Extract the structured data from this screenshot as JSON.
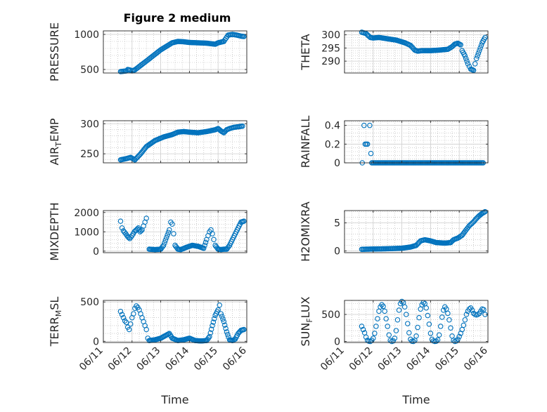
{
  "figure": {
    "title": "Figure 2 medium"
  },
  "colors": {
    "marker": "#0072BD",
    "axis": "#262626",
    "grid": "#b0b0b0",
    "background": "#ffffff"
  },
  "chart_data": [
    {
      "id": "pressure",
      "type": "scatter",
      "ylabel": "PRESSURE",
      "ylabel_sub": null,
      "ylim": [
        450,
        1050
      ],
      "yticks": [
        500,
        1000
      ],
      "ytick_labels": [
        "500",
        "1000"
      ],
      "xlim": [
        0,
        5
      ],
      "xticks": [
        0,
        1,
        2,
        3,
        4,
        5
      ],
      "xtick_labels": [
        "06/11",
        "06/12",
        "06/13",
        "06/14",
        "06/15",
        "06/16"
      ],
      "xlabel": "",
      "grid": true,
      "minor_grid": true,
      "title": "Figure 2 medium",
      "segments": [
        {
          "x": [
            0.6,
            0.8,
            0.85,
            0.95,
            1.0,
            1.1
          ],
          "y": [
            470,
            480,
            500,
            490,
            480,
            495
          ]
        },
        {
          "x": [
            1.1,
            1.5,
            2.0,
            2.4,
            2.6,
            2.8,
            3.0,
            3.3,
            3.6,
            3.9,
            4.0,
            4.2,
            4.35,
            4.5,
            4.65,
            4.8,
            4.9
          ],
          "y": [
            495,
            620,
            780,
            880,
            900,
            895,
            885,
            880,
            875,
            860,
            880,
            900,
            990,
            1000,
            990,
            975,
            970
          ]
        }
      ]
    },
    {
      "id": "theta",
      "type": "scatter",
      "ylabel": "THETA",
      "ylabel_sub": null,
      "ylim": [
        285.5,
        301.5
      ],
      "yticks": [
        290,
        295,
        300
      ],
      "ytick_labels": [
        "290",
        "295",
        "300"
      ],
      "xlim": [
        0,
        5
      ],
      "xticks": [
        0,
        1,
        2,
        3,
        4,
        5
      ],
      "xtick_labels": [
        "06/11",
        "06/12",
        "06/13",
        "06/14",
        "06/15",
        "06/16"
      ],
      "xlabel": "",
      "grid": true,
      "minor_grid": true,
      "title": "",
      "segments": [
        {
          "x": [
            0.6,
            0.75,
            0.9,
            1.0,
            1.2,
            1.5,
            1.8,
            2.1,
            2.3,
            2.45,
            2.55,
            2.7,
            3.0,
            3.3,
            3.6,
            3.75,
            3.85,
            3.95,
            4.05
          ],
          "y": [
            301,
            300.5,
            299,
            298.8,
            299,
            298.5,
            298,
            297,
            296,
            294.2,
            293.8,
            294,
            294,
            294.2,
            294.5,
            295.5,
            296.5,
            296.8,
            296.2
          ]
        },
        {
          "x": [
            4.1,
            4.2,
            4.3,
            4.35,
            4.4,
            4.5,
            4.55,
            4.6,
            4.7,
            4.8,
            4.9
          ],
          "y": [
            294,
            292,
            289,
            288,
            287,
            286.5,
            289,
            291,
            294,
            297,
            299
          ]
        }
      ]
    },
    {
      "id": "air_temp",
      "type": "scatter",
      "ylabel": "AIR",
      "ylabel_sub": "T",
      "ylabel_rest": "EMP",
      "ylim": [
        235,
        305
      ],
      "yticks": [
        250,
        300
      ],
      "ytick_labels": [
        "250",
        "300"
      ],
      "xlim": [
        0,
        5
      ],
      "xticks": [
        0,
        1,
        2,
        3,
        4,
        5
      ],
      "xtick_labels": [
        "06/11",
        "06/12",
        "06/13",
        "06/14",
        "06/15",
        "06/16"
      ],
      "xlabel": "",
      "grid": true,
      "minor_grid": true,
      "title": "",
      "segments": [
        {
          "x": [
            0.6,
            0.8,
            0.95,
            1.1
          ],
          "y": [
            240,
            242,
            244,
            240
          ]
        },
        {
          "x": [
            1.1,
            1.3,
            1.5,
            1.8,
            2.1,
            2.4,
            2.6,
            2.8,
            3.0,
            3.3,
            3.6,
            3.9,
            4.0,
            4.1,
            4.2,
            4.3,
            4.4,
            4.55,
            4.7,
            4.85
          ],
          "y": [
            240,
            250,
            262,
            272,
            278,
            282,
            286,
            287,
            286,
            285,
            287,
            290,
            292,
            288,
            285,
            290,
            292,
            294,
            295,
            296
          ]
        }
      ]
    },
    {
      "id": "rainfall",
      "type": "scatter",
      "ylabel": "RAINFALL",
      "ylabel_sub": null,
      "ylim": [
        0,
        0.45
      ],
      "yticks": [
        0,
        0.2,
        0.4
      ],
      "ytick_labels": [
        "0",
        "0.2",
        "0.4"
      ],
      "xlim": [
        0,
        5
      ],
      "xticks": [
        0,
        1,
        2,
        3,
        4,
        5
      ],
      "xtick_labels": [
        "06/11",
        "06/12",
        "06/13",
        "06/14",
        "06/15",
        "06/16"
      ],
      "xlabel": "",
      "grid": true,
      "minor_grid": true,
      "title": "",
      "points": {
        "x": [
          0.62,
          0.68,
          0.72,
          0.76,
          0.8,
          0.88,
          0.92
        ],
        "y": [
          0,
          0.4,
          0.2,
          0.2,
          0.2,
          0.4,
          0.1
        ]
      },
      "baseline": {
        "x_start": 0.95,
        "x_end": 4.85,
        "y": 0
      }
    },
    {
      "id": "mixdepth",
      "type": "scatter",
      "ylabel": "MIXDEPTH",
      "ylabel_sub": null,
      "ylim": [
        -80,
        2100
      ],
      "yticks": [
        0,
        1000,
        2000
      ],
      "ytick_labels": [
        "0",
        "1000",
        "2000"
      ],
      "xlim": [
        0,
        5
      ],
      "xticks": [
        0,
        1,
        2,
        3,
        4,
        5
      ],
      "xtick_labels": [
        "06/11",
        "06/12",
        "06/13",
        "06/14",
        "06/15",
        "06/16"
      ],
      "xlabel": "",
      "grid": true,
      "minor_grid": true,
      "title": "",
      "segments": [
        {
          "x": [
            0.6,
            0.65,
            0.7,
            0.78,
            0.85,
            0.92,
            1.0,
            1.08,
            1.15,
            1.22,
            1.28,
            1.35,
            1.4,
            1.45,
            1.5
          ],
          "y": [
            1550,
            1200,
            1050,
            900,
            750,
            650,
            800,
            1000,
            1100,
            1200,
            1000,
            1100,
            1300,
            1500,
            1700
          ]
        },
        {
          "x": [
            1.6,
            1.8,
            2.0,
            2.1,
            2.2,
            2.3,
            2.35,
            2.4,
            2.45,
            2.5,
            2.6,
            2.7,
            2.9,
            3.1,
            3.3,
            3.5,
            3.6,
            3.65,
            3.7,
            3.75,
            3.8,
            3.85,
            3.9,
            4.0,
            4.1,
            4.2,
            4.3,
            4.4,
            4.5,
            4.6,
            4.7,
            4.8,
            4.9
          ],
          "y": [
            100,
            80,
            100,
            300,
            700,
            1100,
            1500,
            1400,
            900,
            300,
            100,
            80,
            200,
            300,
            250,
            150,
            600,
            800,
            1000,
            1100,
            900,
            600,
            300,
            100,
            80,
            100,
            100,
            300,
            600,
            900,
            1200,
            1500,
            1550
          ]
        }
      ]
    },
    {
      "id": "h2omixra",
      "type": "scatter",
      "ylabel": "H2OMIXRA",
      "ylabel_sub": null,
      "ylim": [
        -0.3,
        7.2
      ],
      "yticks": [
        0,
        5
      ],
      "ytick_labels": [
        "0",
        "5"
      ],
      "xlim": [
        0,
        5
      ],
      "xticks": [
        0,
        1,
        2,
        3,
        4,
        5
      ],
      "xtick_labels": [
        "06/11",
        "06/12",
        "06/13",
        "06/14",
        "06/15",
        "06/16"
      ],
      "xlabel": "",
      "grid": true,
      "minor_grid": true,
      "title": "",
      "segments": [
        {
          "x": [
            0.6,
            1.0,
            1.5,
            2.0,
            2.3,
            2.5,
            2.65,
            2.8,
            3.0,
            3.2,
            3.5,
            3.7,
            3.8,
            3.95,
            4.1,
            4.2,
            4.35,
            4.5,
            4.6,
            4.7,
            4.8,
            4.9
          ],
          "y": [
            0.3,
            0.35,
            0.4,
            0.5,
            0.7,
            1.0,
            1.8,
            2.0,
            1.8,
            1.5,
            1.4,
            1.5,
            2.0,
            2.3,
            2.8,
            3.5,
            4.5,
            5.2,
            5.8,
            6.3,
            6.7,
            7.0
          ]
        }
      ]
    },
    {
      "id": "terr_msl",
      "type": "scatter",
      "ylabel": "TERR",
      "ylabel_sub": "M",
      "ylabel_rest": "SL",
      "ylim": [
        -15,
        520
      ],
      "yticks": [
        0,
        500
      ],
      "ytick_labels": [
        "0",
        "500"
      ],
      "xlim": [
        0,
        5
      ],
      "xticks": [
        0,
        1,
        2,
        3,
        4,
        5
      ],
      "xtick_labels": [
        "06/11",
        "06/12",
        "06/13",
        "06/14",
        "06/15",
        "06/16"
      ],
      "xlabel": "Time",
      "grid": true,
      "minor_grid": true,
      "title": "",
      "segments": [
        {
          "x": [
            0.6,
            0.65,
            0.7,
            0.75,
            0.8,
            0.85,
            0.9,
            0.95,
            1.0,
            1.05,
            1.1,
            1.15,
            1.2,
            1.25,
            1.3,
            1.35,
            1.4,
            1.45,
            1.5,
            1.55
          ],
          "y": [
            380,
            340,
            300,
            260,
            240,
            180,
            150,
            220,
            300,
            350,
            420,
            450,
            430,
            400,
            350,
            300,
            250,
            200,
            150,
            40
          ]
        },
        {
          "x": [
            1.6,
            1.8,
            2.0,
            2.1,
            2.2,
            2.3,
            2.4,
            2.6,
            2.8,
            3.0,
            3.2,
            3.4,
            3.6,
            3.7,
            3.8,
            3.9,
            4.0,
            4.05,
            4.1,
            4.2,
            4.3,
            4.4,
            4.5,
            4.6,
            4.7,
            4.8,
            4.9
          ],
          "y": [
            10,
            20,
            40,
            60,
            80,
            100,
            40,
            10,
            20,
            40,
            10,
            5,
            10,
            60,
            200,
            330,
            400,
            460,
            350,
            250,
            120,
            20,
            10,
            30,
            100,
            140,
            150
          ]
        }
      ]
    },
    {
      "id": "sun_flux",
      "type": "scatter",
      "ylabel": "SUN",
      "ylabel_sub": "F",
      "ylabel_rest": "LUX",
      "ylim": [
        -20,
        760
      ],
      "yticks": [
        0,
        500
      ],
      "ytick_labels": [
        "0",
        "500"
      ],
      "xlim": [
        0,
        5
      ],
      "xticks": [
        0,
        1,
        2,
        3,
        4,
        5
      ],
      "xtick_labels": [
        "06/11",
        "06/12",
        "06/13",
        "06/14",
        "06/15",
        "06/16"
      ],
      "xlabel": "Time",
      "grid": true,
      "minor_grid": true,
      "title": "",
      "segments": [
        {
          "x": [
            0.6,
            0.65,
            0.7,
            0.75,
            0.8,
            0.85,
            0.9,
            0.95,
            1.0,
            1.05,
            1.1,
            1.15,
            1.2,
            1.25,
            1.3,
            1.35,
            1.4,
            1.45,
            1.5,
            1.55,
            1.6,
            1.65,
            1.7,
            1.75,
            1.8,
            1.85,
            1.9,
            1.95,
            2.0,
            2.05,
            2.1,
            2.15,
            2.2,
            2.25,
            2.3,
            2.35,
            2.4,
            2.45,
            2.5,
            2.55,
            2.6,
            2.65,
            2.7,
            2.75,
            2.8,
            2.85,
            2.9,
            2.95,
            3.0,
            3.05,
            3.1,
            3.15,
            3.2,
            3.25,
            3.3,
            3.35,
            3.4,
            3.45,
            3.5,
            3.55,
            3.6,
            3.65,
            3.7,
            3.75,
            3.8,
            3.85,
            3.9,
            3.95,
            4.0,
            4.05,
            4.1,
            4.15,
            4.2,
            4.25,
            4.3,
            4.35,
            4.4,
            4.45,
            4.5,
            4.55,
            4.6,
            4.65,
            4.7,
            4.75,
            4.8,
            4.85,
            4.9
          ],
          "y": [
            280,
            220,
            160,
            80,
            20,
            5,
            0,
            20,
            60,
            150,
            280,
            420,
            560,
            640,
            680,
            650,
            560,
            420,
            280,
            120,
            20,
            0,
            10,
            60,
            200,
            400,
            580,
            700,
            740,
            720,
            640,
            500,
            330,
            160,
            40,
            5,
            0,
            20,
            100,
            260,
            440,
            600,
            680,
            720,
            700,
            620,
            480,
            320,
            150,
            40,
            10,
            0,
            5,
            30,
            120,
            280,
            450,
            580,
            640,
            600,
            520,
            400,
            250,
            100,
            20,
            0,
            10,
            40,
            90,
            150,
            220,
            300,
            400,
            500,
            560,
            600,
            620,
            580,
            520,
            500,
            490,
            500,
            520,
            560,
            600,
            590,
            500
          ]
        }
      ]
    }
  ]
}
